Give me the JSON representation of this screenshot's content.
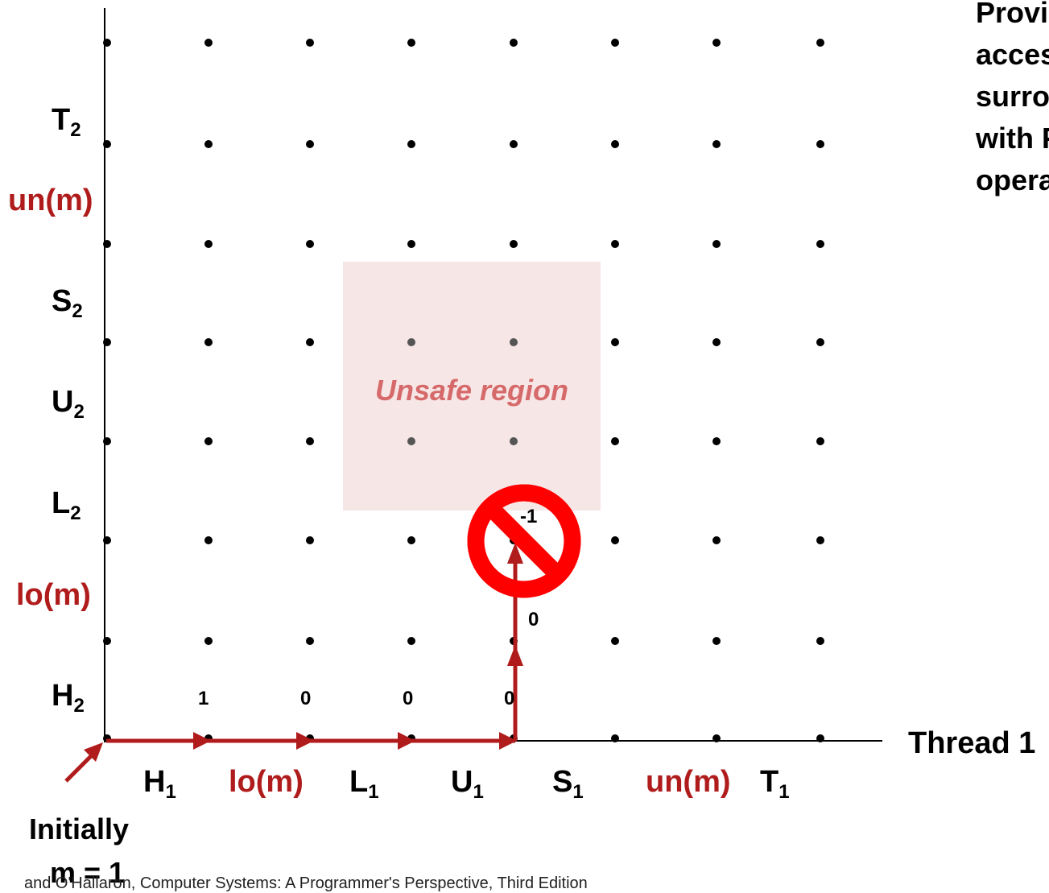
{
  "y_axis_labels": {
    "t2": {
      "base": "T",
      "sub": "2"
    },
    "un_m": "un(m)",
    "s2": {
      "base": "S",
      "sub": "2"
    },
    "u2": {
      "base": "U",
      "sub": "2"
    },
    "l2": {
      "base": "L",
      "sub": "2"
    },
    "lo_m": "lo(m)",
    "h2": {
      "base": "H",
      "sub": "2"
    }
  },
  "x_axis_labels": {
    "h1": {
      "base": "H",
      "sub": "1"
    },
    "lo_m": "lo(m)",
    "l1": {
      "base": "L",
      "sub": "1"
    },
    "u1": {
      "base": "U",
      "sub": "1"
    },
    "s1": {
      "base": "S",
      "sub": "1"
    },
    "un_m": "un(m)",
    "t1": {
      "base": "T",
      "sub": "1"
    }
  },
  "thread1_label": "Thread 1",
  "unsafe_region_label": "Unsafe region",
  "initially_label": "Initially",
  "m_label": "m = 1",
  "mutex_values": {
    "row0": [
      "1",
      "0",
      "0",
      "0"
    ],
    "col4_upper": [
      "0",
      "-1"
    ]
  },
  "note_lines": [
    "Provid",
    "acces",
    "surrou",
    "with P",
    "opera"
  ],
  "footer_text": "and O'Hallaron, Computer Systems: A Programmer's Perspective, Third Edition",
  "colors": {
    "path": "#b01c1c",
    "unsafe_fill": "#f6e6e6",
    "unsafe_text": "#d66a6a",
    "forbidden": "#ff0000"
  }
}
